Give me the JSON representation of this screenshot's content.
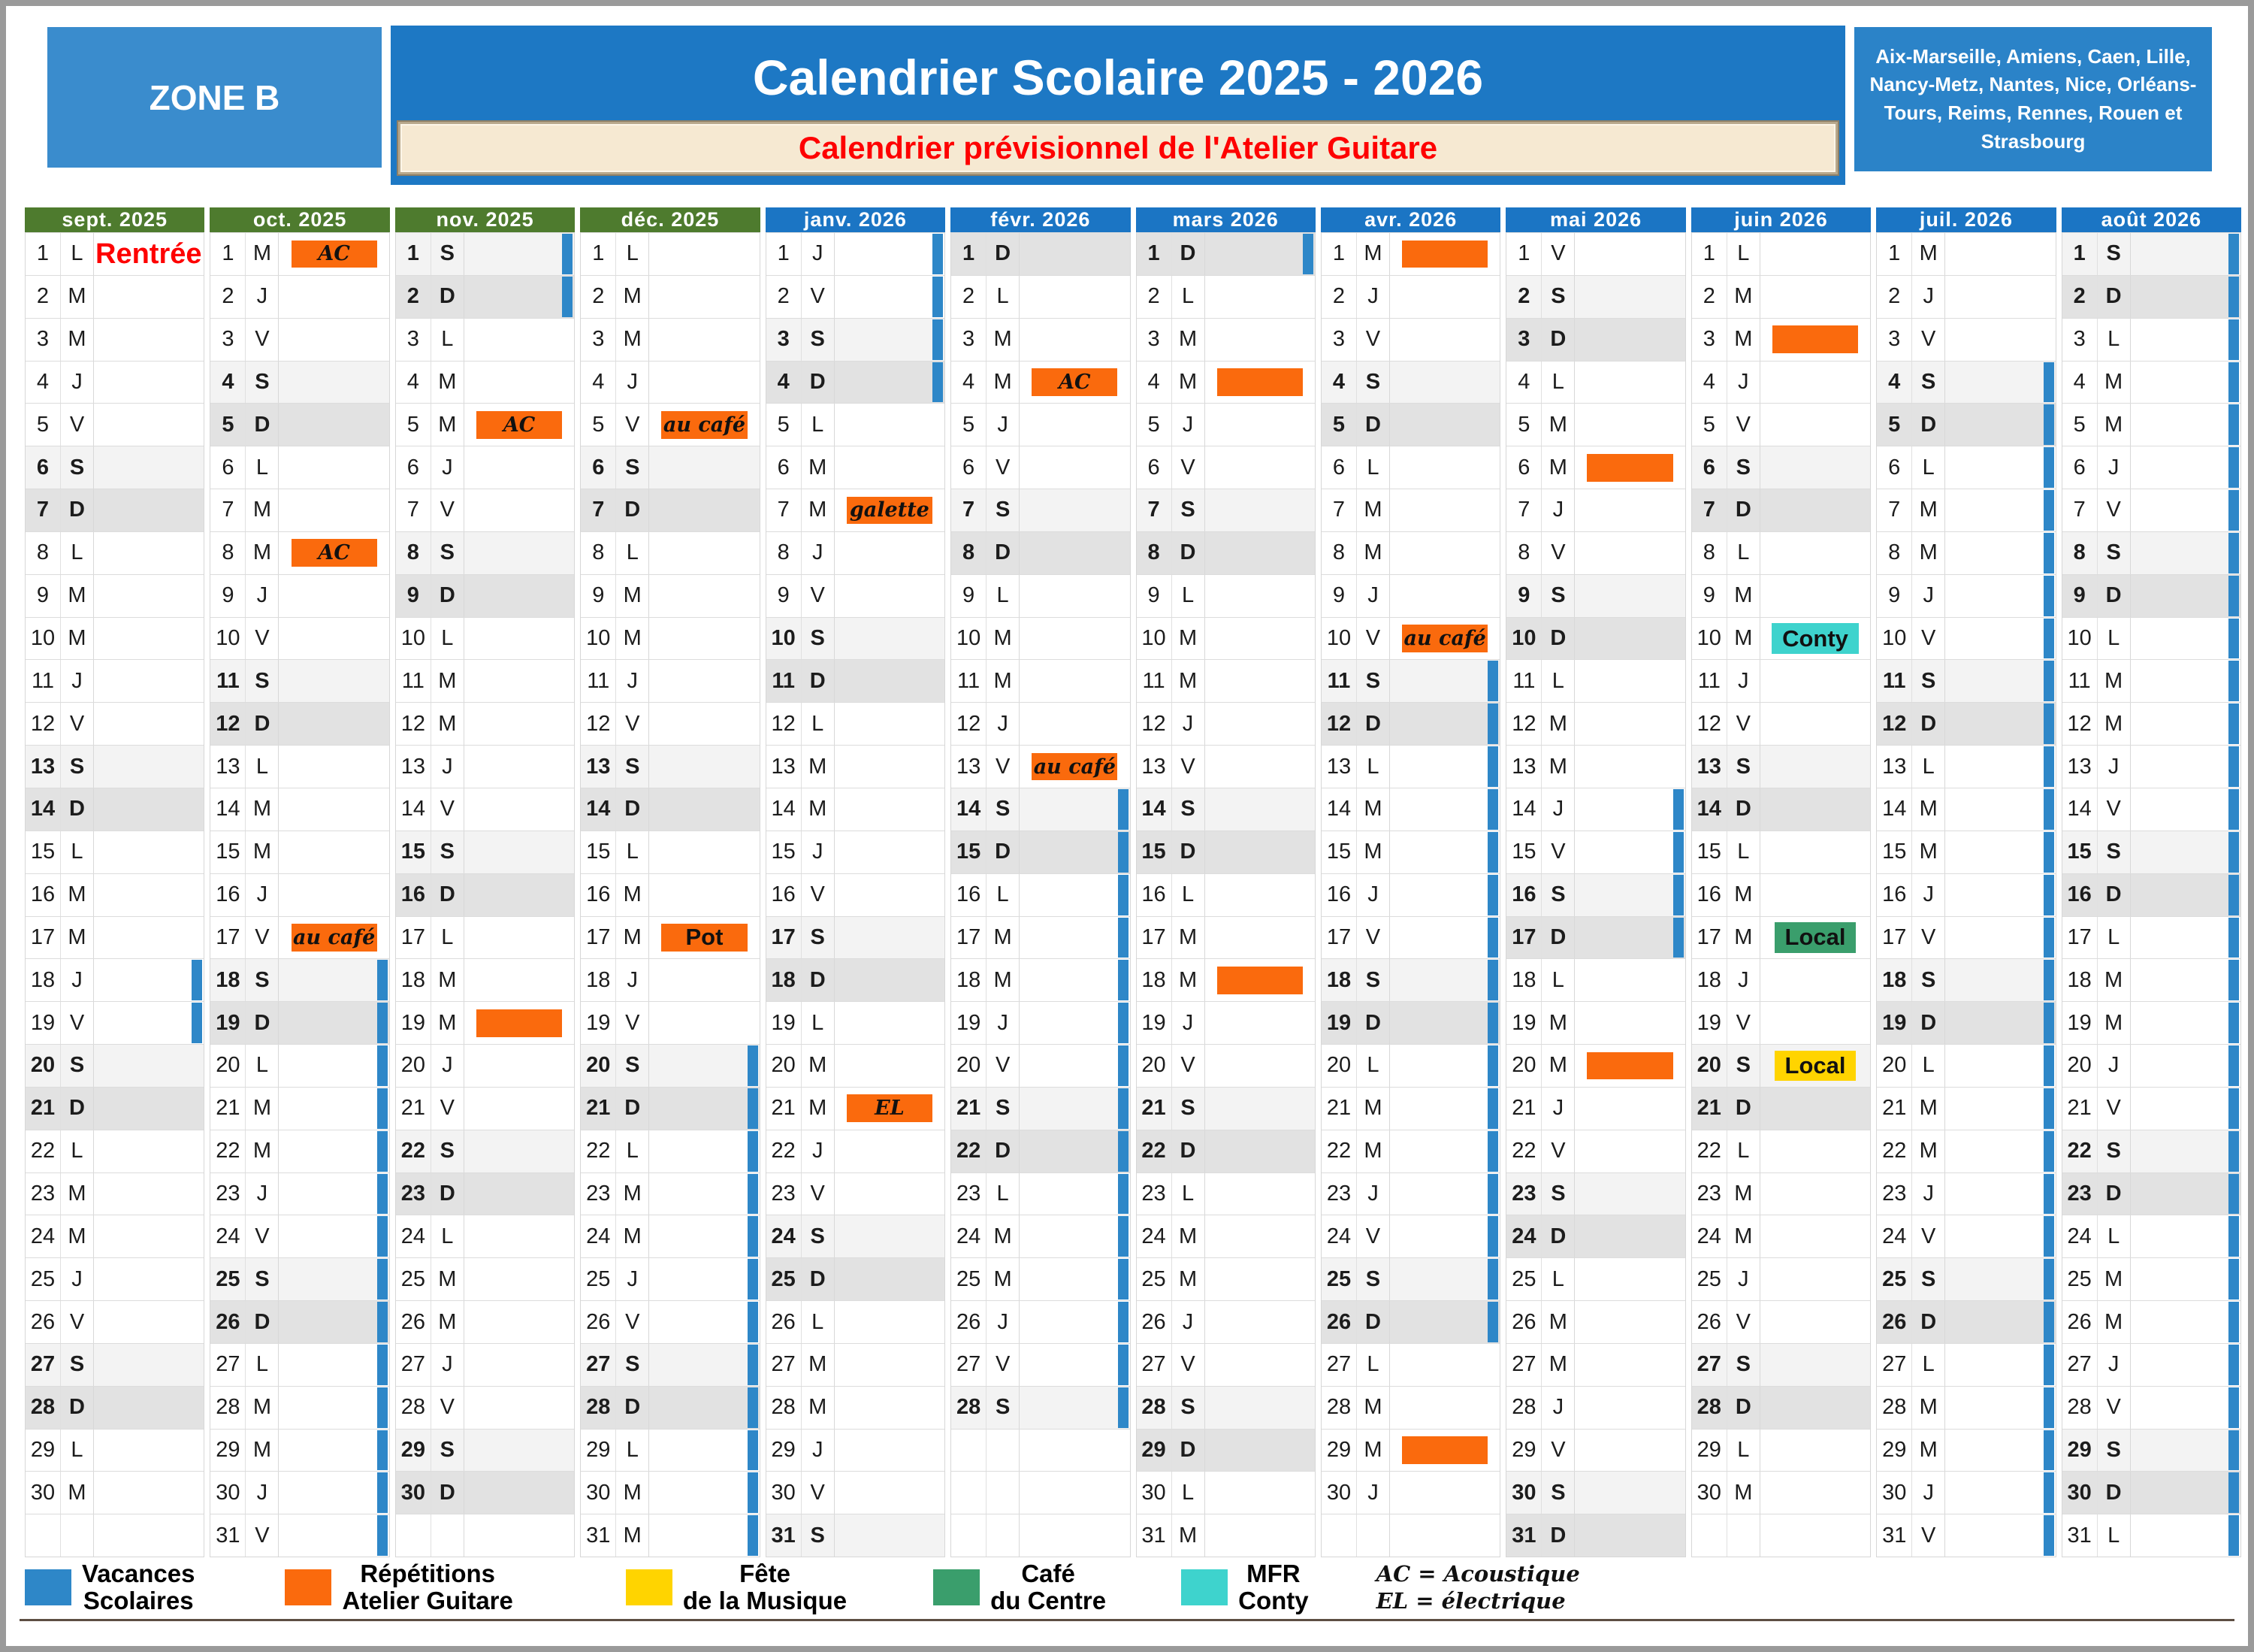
{
  "header": {
    "zone_label": "ZONE B",
    "title": "Calendrier Scolaire 2025 - 2026",
    "subtitle": "Calendrier prévisionnel  de l'Atelier Guitare",
    "cities": "Aix-Marseille, Amiens, Caen, Lille, Nancy-Metz, Nantes, Nice, Orléans-Tours, Reims, Rennes, Rouen et Strasbourg"
  },
  "weekday_letters": [
    "L",
    "M",
    "M",
    "J",
    "V",
    "S",
    "D"
  ],
  "colors": {
    "vacation": "#2e87c8",
    "repetition": "#fa6a0d",
    "fete": "#ffd400",
    "cafe": "#3a9e6c",
    "mfr": "#3ed3cd",
    "month_green": "#4e7b2e",
    "month_blue": "#1b75c4",
    "rentree_red": "#fe0000"
  },
  "months": [
    {
      "name": "sept. 2025",
      "color": "green",
      "days": 30,
      "start": 0,
      "events": [
        {
          "day": 1,
          "type": "text",
          "label": "Rentrée"
        }
      ],
      "vacations": [
        [
          18,
          19
        ]
      ]
    },
    {
      "name": "oct. 2025",
      "color": "green",
      "days": 31,
      "start": 2,
      "events": [
        {
          "day": 1,
          "type": "rep",
          "label": "AC"
        },
        {
          "day": 8,
          "type": "rep",
          "label": "AC"
        },
        {
          "day": 17,
          "type": "rep",
          "label": "au café"
        }
      ],
      "vacations": [
        [
          18,
          31
        ]
      ]
    },
    {
      "name": "nov. 2025",
      "color": "green",
      "days": 30,
      "start": 5,
      "events": [
        {
          "day": 5,
          "type": "rep",
          "label": "AC"
        },
        {
          "day": 19,
          "type": "rep",
          "label": ""
        }
      ],
      "vacations": [
        [
          1,
          2
        ]
      ]
    },
    {
      "name": "déc. 2025",
      "color": "green",
      "days": 31,
      "start": 0,
      "events": [
        {
          "day": 5,
          "type": "rep",
          "label": "au café"
        },
        {
          "day": 17,
          "type": "rep-bold",
          "label": "Pot"
        }
      ],
      "vacations": [
        [
          20,
          31
        ]
      ]
    },
    {
      "name": "janv. 2026",
      "color": "blue",
      "days": 31,
      "start": 3,
      "events": [
        {
          "day": 7,
          "type": "rep",
          "label": "galette"
        },
        {
          "day": 21,
          "type": "rep",
          "label": "EL"
        }
      ],
      "vacations": [
        [
          1,
          4
        ]
      ]
    },
    {
      "name": "févr. 2026",
      "color": "blue",
      "days": 28,
      "start": 6,
      "events": [
        {
          "day": 4,
          "type": "rep",
          "label": "AC"
        },
        {
          "day": 13,
          "type": "rep",
          "label": "au café"
        }
      ],
      "vacations": [
        [
          14,
          28
        ]
      ]
    },
    {
      "name": "mars 2026",
      "color": "blue",
      "days": 31,
      "start": 6,
      "events": [
        {
          "day": 4,
          "type": "rep",
          "label": ""
        },
        {
          "day": 18,
          "type": "rep",
          "label": ""
        }
      ],
      "vacations": [
        [
          1,
          1
        ]
      ]
    },
    {
      "name": "avr. 2026",
      "color": "blue",
      "days": 30,
      "start": 2,
      "events": [
        {
          "day": 1,
          "type": "rep",
          "label": ""
        },
        {
          "day": 10,
          "type": "rep",
          "label": "au café"
        },
        {
          "day": 29,
          "type": "rep",
          "label": ""
        }
      ],
      "vacations": [
        [
          11,
          26
        ]
      ]
    },
    {
      "name": "mai 2026",
      "color": "blue",
      "days": 31,
      "start": 4,
      "events": [
        {
          "day": 6,
          "type": "rep",
          "label": ""
        },
        {
          "day": 20,
          "type": "rep",
          "label": ""
        }
      ],
      "vacations": [
        [
          14,
          17
        ]
      ]
    },
    {
      "name": "juin 2026",
      "color": "blue",
      "days": 30,
      "start": 0,
      "events": [
        {
          "day": 3,
          "type": "rep",
          "label": ""
        },
        {
          "day": 10,
          "type": "mfr",
          "label": "Conty"
        },
        {
          "day": 17,
          "type": "cafe",
          "label": "Local"
        },
        {
          "day": 20,
          "type": "fete",
          "label": "Local"
        }
      ],
      "vacations": []
    },
    {
      "name": "juil. 2026",
      "color": "blue",
      "days": 31,
      "start": 2,
      "events": [],
      "vacations": [
        [
          4,
          31
        ]
      ]
    },
    {
      "name": "août 2026",
      "color": "blue",
      "days": 31,
      "start": 5,
      "events": [],
      "vacations": [
        [
          1,
          31
        ]
      ]
    }
  ],
  "legend": [
    {
      "color_key": "vacation",
      "line1": "Vacances",
      "line2": "Scolaires"
    },
    {
      "color_key": "repetition",
      "line1": "Répétitions",
      "line2": "Atelier Guitare"
    },
    {
      "color_key": "fete",
      "line1": "Fête",
      "line2": "de la Musique"
    },
    {
      "color_key": "cafe",
      "line1": "Café",
      "line2": "du Centre"
    },
    {
      "color_key": "mfr",
      "line1": "MFR",
      "line2": "Conty"
    }
  ],
  "legend_notes": [
    "AC = Acoustique",
    "EL = électrique"
  ]
}
